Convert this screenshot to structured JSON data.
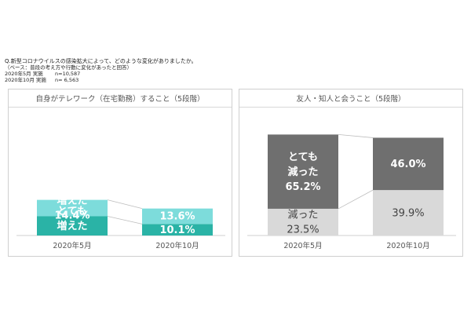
{
  "header": {
    "question": "Q.新型コロナウイルスの感染拡大によって、どのような変化がありましたか。",
    "base": "（ベース：普段の考え方や行動に変化があったと回答）",
    "waves": [
      {
        "label": "2020年5月 実施",
        "n": "n=10,587"
      },
      {
        "label": "2020年10月 実施",
        "n": "n= 6,563"
      }
    ]
  },
  "chart_data": [
    {
      "type": "bar",
      "stacked": true,
      "title": "自身がテレワーク（在宅勤務）すること（5段階）",
      "categories": [
        "2020年5月",
        "2020年10月"
      ],
      "series": [
        {
          "name": "とても増えた",
          "values": [
            16.9,
            10.1
          ],
          "color": "#2ab3a6",
          "text_color": "#ffffff",
          "labels": [
            "とても\n増えた\n16.9%",
            "10.1%"
          ]
        },
        {
          "name": "増えた",
          "values": [
            14.4,
            13.6
          ],
          "color": "#7ddcdb",
          "text_color": "#ffffff",
          "labels": [
            "増えた\n14.4%",
            "13.6%"
          ]
        }
      ]
    },
    {
      "type": "bar",
      "stacked": true,
      "title": "友人・知人と会うこと（5段階）",
      "categories": [
        "2020年5月",
        "2020年10月"
      ],
      "series": [
        {
          "name": "減った",
          "values": [
            23.5,
            39.9
          ],
          "color": "#d9d9d9",
          "text_color": "#444444",
          "labels": [
            "減った\n23.5%",
            "39.9%"
          ]
        },
        {
          "name": "とても減った",
          "values": [
            65.2,
            46.0
          ],
          "color": "#6f6f6f",
          "text_color": "#ffffff",
          "labels": [
            "とても\n減った\n65.2%",
            "46.0%"
          ]
        }
      ]
    }
  ]
}
